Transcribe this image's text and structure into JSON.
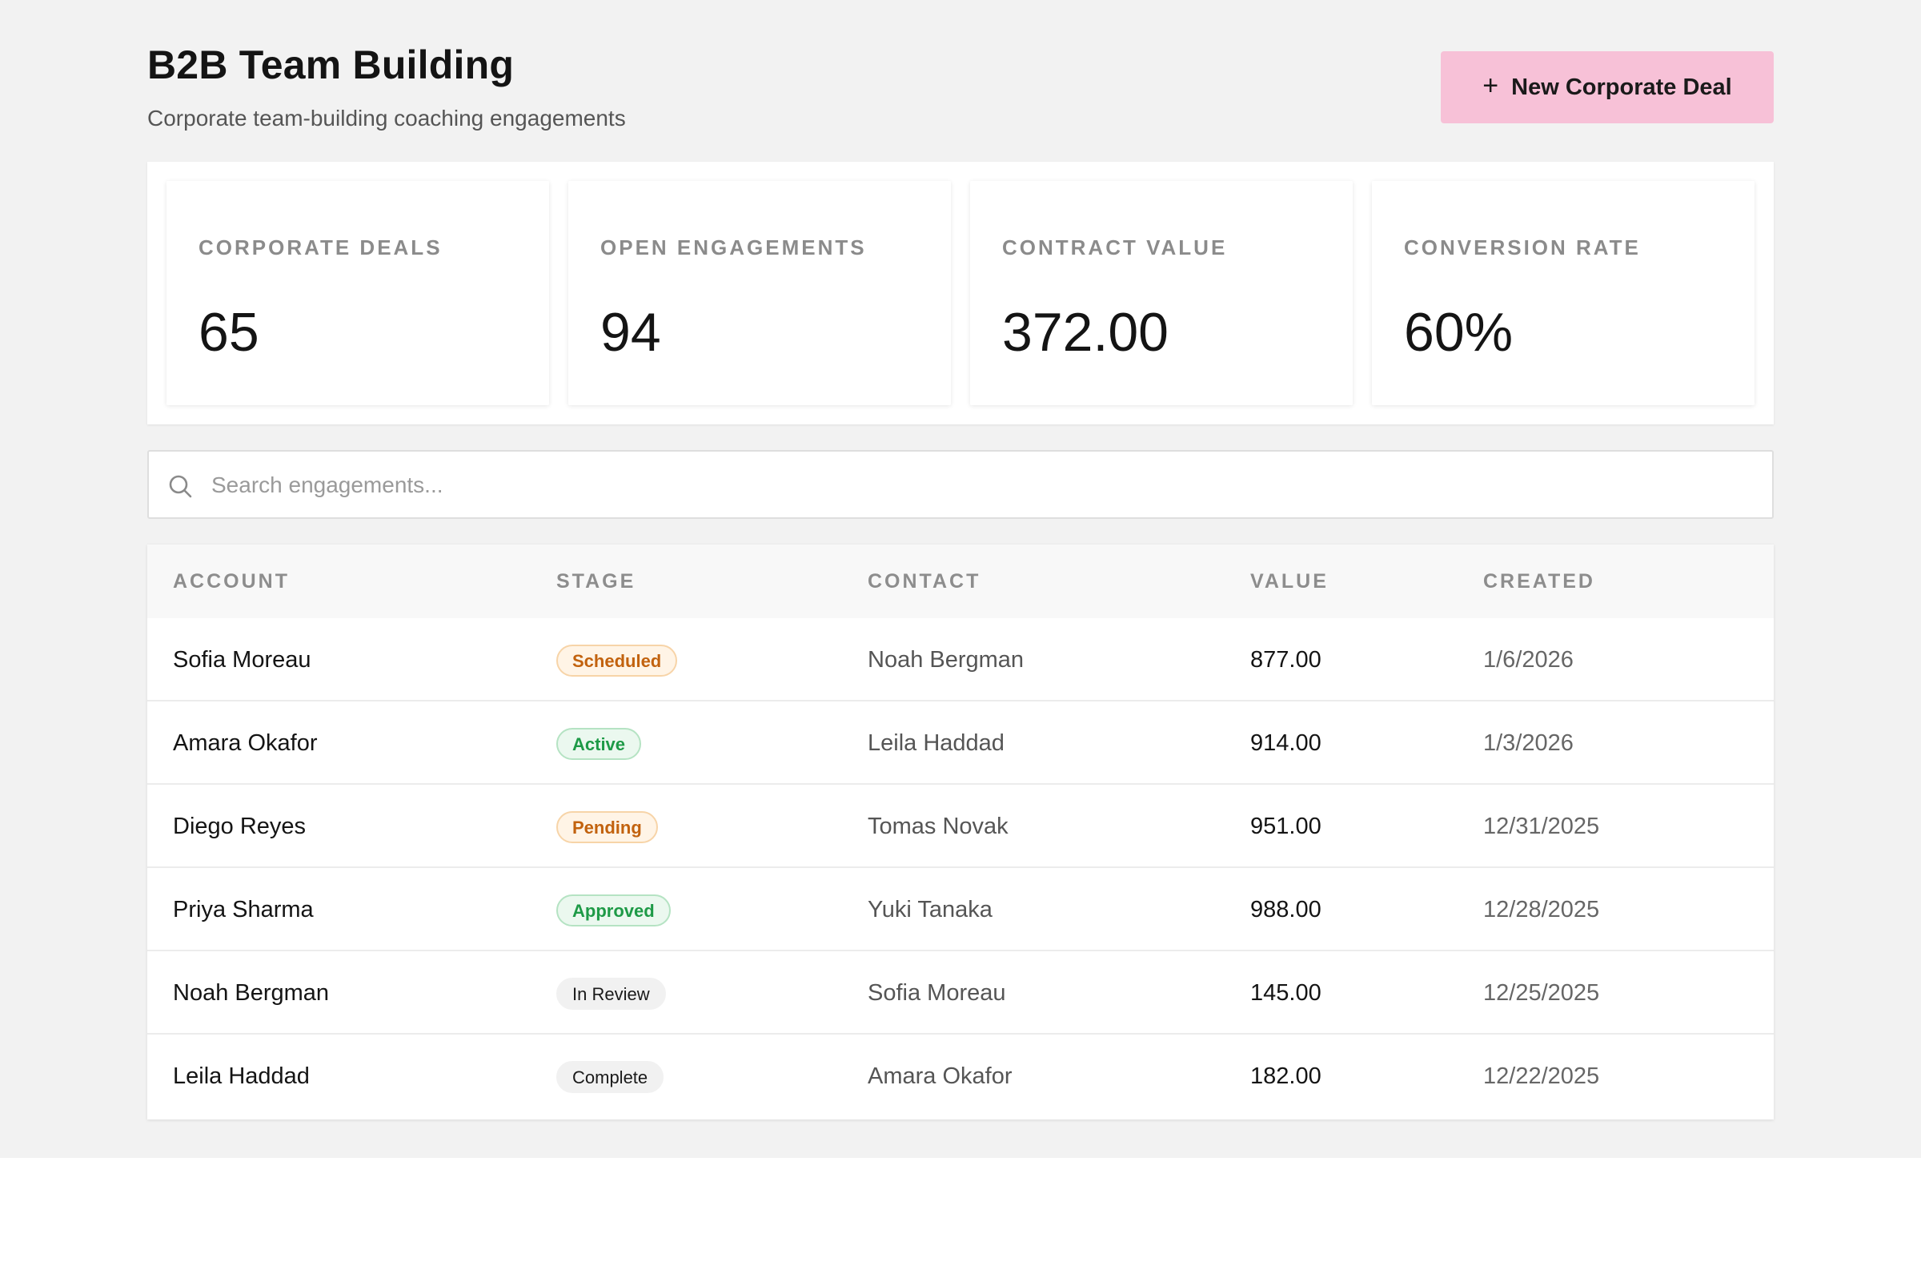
{
  "header": {
    "title": "B2B Team Building",
    "subtitle": "Corporate team-building coaching engagements",
    "new_button_label": "New Corporate Deal",
    "new_button_icon": "plus-icon",
    "accent_color": "#f7c1d7"
  },
  "stats": [
    {
      "label": "CORPORATE DEALS",
      "value": "65"
    },
    {
      "label": "OPEN ENGAGEMENTS",
      "value": "94"
    },
    {
      "label": "CONTRACT VALUE",
      "value": "372.00"
    },
    {
      "label": "CONVERSION RATE",
      "value": "60%"
    }
  ],
  "search": {
    "placeholder": "Search engagements...",
    "value": "",
    "icon": "search-icon"
  },
  "table": {
    "columns": [
      "ACCOUNT",
      "STAGE",
      "CONTACT",
      "VALUE",
      "CREATED"
    ],
    "rows": [
      {
        "account": "Sofia Moreau",
        "stage": "Scheduled",
        "stage_tone": "warn",
        "contact": "Noah Bergman",
        "value": "877.00",
        "created": "1/6/2026"
      },
      {
        "account": "Amara Okafor",
        "stage": "Active",
        "stage_tone": "ok",
        "contact": "Leila Haddad",
        "value": "914.00",
        "created": "1/3/2026"
      },
      {
        "account": "Diego Reyes",
        "stage": "Pending",
        "stage_tone": "warn",
        "contact": "Tomas Novak",
        "value": "951.00",
        "created": "12/31/2025"
      },
      {
        "account": "Priya Sharma",
        "stage": "Approved",
        "stage_tone": "ok",
        "contact": "Yuki Tanaka",
        "value": "988.00",
        "created": "12/28/2025"
      },
      {
        "account": "Noah Bergman",
        "stage": "In Review",
        "stage_tone": "neutral",
        "contact": "Sofia Moreau",
        "value": "145.00",
        "created": "12/25/2025"
      },
      {
        "account": "Leila Haddad",
        "stage": "Complete",
        "stage_tone": "neutral",
        "contact": "Amara Okafor",
        "value": "182.00",
        "created": "12/22/2025"
      }
    ]
  },
  "colors": {
    "warn_text": "#c2620e",
    "ok_text": "#1e9a47",
    "page_background": "#f2f2f2"
  }
}
